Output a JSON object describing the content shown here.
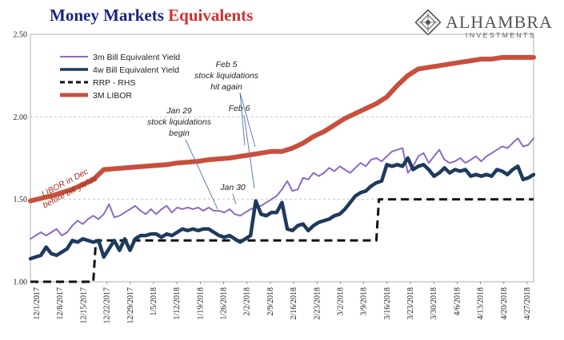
{
  "title": {
    "part1": "Money Markets ",
    "part2": "Equivalents",
    "color1": "#1a237e",
    "color2": "#d32f2f"
  },
  "brand": {
    "name": "ALHAMBRA",
    "sub": "INVESTMENTS",
    "color": "#555555"
  },
  "chart_data": {
    "type": "line",
    "ylim": [
      1.0,
      2.5
    ],
    "y_ticks": [
      "1.00",
      "1.50",
      "2.00",
      "2.50"
    ],
    "grid": "horizontal dashed",
    "legend_position": "top-left",
    "x_tick_labels": [
      "12/1/2017",
      "12/8/2017",
      "12/15/2017",
      "12/22/2017",
      "12/29/2017",
      "1/5/2018",
      "1/12/2018",
      "1/19/2018",
      "1/26/2018",
      "2/2/2018",
      "2/9/2018",
      "2/16/2018",
      "2/23/2018",
      "3/2/2018",
      "3/9/2018",
      "3/16/2018",
      "3/23/2018",
      "3/30/2018",
      "4/6/2018",
      "4/13/2018",
      "4/20/2018",
      "4/27/2018"
    ],
    "series": [
      {
        "name": "3m Bill Equivalent Yield",
        "color": "#8e6bbf",
        "width": 2,
        "dash": "",
        "points": [
          [
            0,
            1.26
          ],
          [
            1,
            1.28
          ],
          [
            2,
            1.3
          ],
          [
            3,
            1.28
          ],
          [
            4,
            1.3
          ],
          [
            5,
            1.32
          ],
          [
            6,
            1.28
          ],
          [
            7,
            1.3
          ],
          [
            8,
            1.34
          ],
          [
            9,
            1.37
          ],
          [
            10,
            1.35
          ],
          [
            11,
            1.38
          ],
          [
            12,
            1.4
          ],
          [
            13,
            1.38
          ],
          [
            14,
            1.41
          ],
          [
            15,
            1.47
          ],
          [
            16,
            1.39
          ],
          [
            17,
            1.4
          ],
          [
            18,
            1.42
          ],
          [
            19,
            1.44
          ],
          [
            20,
            1.46
          ],
          [
            21,
            1.43
          ],
          [
            22,
            1.41
          ],
          [
            23,
            1.44
          ],
          [
            24,
            1.41
          ],
          [
            25,
            1.44
          ],
          [
            26,
            1.46
          ],
          [
            27,
            1.42
          ],
          [
            28,
            1.45
          ],
          [
            29,
            1.44
          ],
          [
            30,
            1.45
          ],
          [
            31,
            1.44
          ],
          [
            32,
            1.45
          ],
          [
            33,
            1.43
          ],
          [
            34,
            1.45
          ],
          [
            35,
            1.43
          ],
          [
            36,
            1.43
          ],
          [
            37,
            1.42
          ],
          [
            38,
            1.44
          ],
          [
            39,
            1.41
          ],
          [
            40,
            1.4
          ],
          [
            41,
            1.42
          ],
          [
            42,
            1.44
          ],
          [
            43,
            1.45
          ],
          [
            44,
            1.46
          ],
          [
            45,
            1.48
          ],
          [
            46,
            1.5
          ],
          [
            47,
            1.52
          ],
          [
            48,
            1.56
          ],
          [
            49,
            1.61
          ],
          [
            50,
            1.55
          ],
          [
            51,
            1.56
          ],
          [
            52,
            1.63
          ],
          [
            53,
            1.62
          ],
          [
            54,
            1.66
          ],
          [
            55,
            1.64
          ],
          [
            56,
            1.66
          ],
          [
            57,
            1.69
          ],
          [
            58,
            1.67
          ],
          [
            59,
            1.7
          ],
          [
            60,
            1.68
          ],
          [
            61,
            1.66
          ],
          [
            62,
            1.69
          ],
          [
            63,
            1.72
          ],
          [
            64,
            1.7
          ],
          [
            65,
            1.74
          ],
          [
            66,
            1.75
          ],
          [
            67,
            1.73
          ],
          [
            68,
            1.76
          ],
          [
            69,
            1.79
          ],
          [
            70,
            1.8
          ],
          [
            71,
            1.81
          ],
          [
            72,
            1.66
          ],
          [
            73,
            1.7
          ],
          [
            74,
            1.76
          ],
          [
            75,
            1.78
          ],
          [
            76,
            1.72
          ],
          [
            77,
            1.76
          ],
          [
            78,
            1.8
          ],
          [
            79,
            1.74
          ],
          [
            80,
            1.72
          ],
          [
            81,
            1.73
          ],
          [
            82,
            1.75
          ],
          [
            83,
            1.72
          ],
          [
            84,
            1.74
          ],
          [
            85,
            1.76
          ],
          [
            86,
            1.73
          ],
          [
            87,
            1.76
          ],
          [
            88,
            1.78
          ],
          [
            89,
            1.8
          ],
          [
            90,
            1.82
          ],
          [
            91,
            1.81
          ],
          [
            92,
            1.84
          ],
          [
            93,
            1.87
          ],
          [
            94,
            1.82
          ],
          [
            95,
            1.83
          ],
          [
            96,
            1.87
          ]
        ]
      },
      {
        "name": "4w Bill Equivalent Yield",
        "color": "#1f3a5f",
        "width": 4.5,
        "dash": "",
        "points": [
          [
            0,
            1.14
          ],
          [
            1,
            1.15
          ],
          [
            2,
            1.16
          ],
          [
            3,
            1.21
          ],
          [
            4,
            1.17
          ],
          [
            5,
            1.16
          ],
          [
            6,
            1.18
          ],
          [
            7,
            1.2
          ],
          [
            8,
            1.25
          ],
          [
            9,
            1.24
          ],
          [
            10,
            1.26
          ],
          [
            11,
            1.25
          ],
          [
            12,
            1.24
          ],
          [
            13,
            1.25
          ],
          [
            14,
            1.15
          ],
          [
            15,
            1.2
          ],
          [
            16,
            1.25
          ],
          [
            17,
            1.19
          ],
          [
            18,
            1.26
          ],
          [
            19,
            1.19
          ],
          [
            20,
            1.26
          ],
          [
            21,
            1.28
          ],
          [
            22,
            1.28
          ],
          [
            23,
            1.29
          ],
          [
            24,
            1.29
          ],
          [
            25,
            1.27
          ],
          [
            26,
            1.29
          ],
          [
            27,
            1.28
          ],
          [
            28,
            1.3
          ],
          [
            29,
            1.32
          ],
          [
            30,
            1.31
          ],
          [
            31,
            1.32
          ],
          [
            32,
            1.31
          ],
          [
            33,
            1.32
          ],
          [
            34,
            1.32
          ],
          [
            35,
            1.3
          ],
          [
            36,
            1.28
          ],
          [
            37,
            1.27
          ],
          [
            38,
            1.28
          ],
          [
            39,
            1.26
          ],
          [
            40,
            1.24
          ],
          [
            41,
            1.26
          ],
          [
            42,
            1.28
          ],
          [
            43,
            1.49
          ],
          [
            44,
            1.41
          ],
          [
            45,
            1.4
          ],
          [
            46,
            1.42
          ],
          [
            47,
            1.42
          ],
          [
            48,
            1.48
          ],
          [
            49,
            1.32
          ],
          [
            50,
            1.31
          ],
          [
            51,
            1.34
          ],
          [
            52,
            1.35
          ],
          [
            53,
            1.31
          ],
          [
            54,
            1.34
          ],
          [
            55,
            1.36
          ],
          [
            56,
            1.37
          ],
          [
            57,
            1.38
          ],
          [
            58,
            1.4
          ],
          [
            59,
            1.41
          ],
          [
            60,
            1.44
          ],
          [
            61,
            1.48
          ],
          [
            62,
            1.52
          ],
          [
            63,
            1.54
          ],
          [
            64,
            1.55
          ],
          [
            65,
            1.58
          ],
          [
            66,
            1.6
          ],
          [
            67,
            1.61
          ],
          [
            68,
            1.71
          ],
          [
            69,
            1.7
          ],
          [
            70,
            1.71
          ],
          [
            71,
            1.7
          ],
          [
            72,
            1.75
          ],
          [
            73,
            1.68
          ],
          [
            74,
            1.7
          ],
          [
            75,
            1.71
          ],
          [
            76,
            1.68
          ],
          [
            77,
            1.64
          ],
          [
            78,
            1.66
          ],
          [
            79,
            1.69
          ],
          [
            80,
            1.66
          ],
          [
            81,
            1.68
          ],
          [
            82,
            1.67
          ],
          [
            83,
            1.68
          ],
          [
            84,
            1.64
          ],
          [
            85,
            1.65
          ],
          [
            86,
            1.64
          ],
          [
            87,
            1.65
          ],
          [
            88,
            1.64
          ],
          [
            89,
            1.68
          ],
          [
            90,
            1.67
          ],
          [
            91,
            1.65
          ],
          [
            92,
            1.68
          ],
          [
            93,
            1.7
          ],
          [
            94,
            1.62
          ],
          [
            95,
            1.63
          ],
          [
            96,
            1.65
          ]
        ]
      },
      {
        "name": "RRP - RHS",
        "color": "#111111",
        "width": 3,
        "dash": "10,6",
        "points": [
          [
            0,
            1.0
          ],
          [
            12,
            1.0
          ],
          [
            12.5,
            1.25
          ],
          [
            66,
            1.25
          ],
          [
            66.5,
            1.5
          ],
          [
            96,
            1.5
          ]
        ]
      },
      {
        "name": "3M LIBOR",
        "color": "#c94f3d",
        "width": 6,
        "dash": "",
        "points": [
          [
            0,
            1.49
          ],
          [
            4,
            1.52
          ],
          [
            8,
            1.56
          ],
          [
            10,
            1.59
          ],
          [
            12,
            1.62
          ],
          [
            14,
            1.68
          ],
          [
            18,
            1.69
          ],
          [
            22,
            1.7
          ],
          [
            26,
            1.71
          ],
          [
            28,
            1.72
          ],
          [
            32,
            1.73
          ],
          [
            34,
            1.74
          ],
          [
            38,
            1.75
          ],
          [
            40,
            1.76
          ],
          [
            42,
            1.77
          ],
          [
            44,
            1.78
          ],
          [
            46,
            1.79
          ],
          [
            48,
            1.79
          ],
          [
            50,
            1.81
          ],
          [
            52,
            1.84
          ],
          [
            54,
            1.88
          ],
          [
            56,
            1.91
          ],
          [
            58,
            1.95
          ],
          [
            60,
            1.99
          ],
          [
            62,
            2.02
          ],
          [
            64,
            2.05
          ],
          [
            66,
            2.08
          ],
          [
            68,
            2.12
          ],
          [
            70,
            2.19
          ],
          [
            72,
            2.25
          ],
          [
            74,
            2.29
          ],
          [
            76,
            2.3
          ],
          [
            78,
            2.31
          ],
          [
            80,
            2.32
          ],
          [
            82,
            2.33
          ],
          [
            84,
            2.34
          ],
          [
            86,
            2.35
          ],
          [
            88,
            2.35
          ],
          [
            90,
            2.36
          ],
          [
            92,
            2.36
          ],
          [
            94,
            2.36
          ],
          [
            96,
            2.36
          ]
        ]
      }
    ],
    "annotations": {
      "libor_in_dec": "LIBOR in Dec",
      "libor_before": "before bill yields",
      "feb5_1": "Feb 5",
      "feb5_2": "stock liquidations",
      "feb5_3": "hit again",
      "feb6": "Feb 6",
      "jan29_1": "Jan 29",
      "jan29_2": "stock liquidations",
      "jan29_3": "begin",
      "jan30": "Jan 30"
    }
  }
}
